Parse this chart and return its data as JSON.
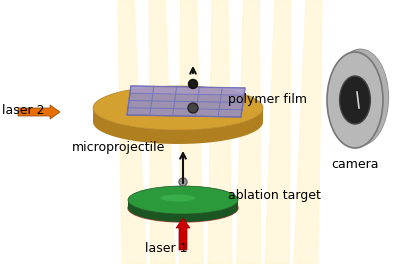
{
  "bg_color": "#ffffff",
  "laser2_arrow_color": "#e87000",
  "laser1_arrow_color": "#cc0000",
  "disk_top_color": "#d4a030",
  "disk_edge_color": "#b08020",
  "disk_side_color": "#c09020",
  "film_color": "#9090cc",
  "film_color2": "#b0a0cc",
  "film_edge_color": "#6060aa",
  "grid_color": "#7070bb",
  "green_disk_top": "#2a9a3a",
  "green_disk_mid": "#1a7a2a",
  "green_disk_hl": "#50cc60",
  "red_disk_color": "#cc6666",
  "camera_outer": "#b0b0b0",
  "camera_mid": "#888888",
  "camera_inner": "#222222",
  "camera_ring": "#999999",
  "ball_dark": "#1a1a1a",
  "ball_gray": "#999999",
  "ray_color": "#fff5d0",
  "arrow_color": "#111111",
  "labels": {
    "laser2": "laser 2",
    "laser1": "laser 1",
    "polymer": "polymer film",
    "microprojectile": "microprojectile",
    "ablation": "ablation target",
    "camera": "camera"
  },
  "label_colors": {
    "laser2": "#000000",
    "laser1": "#000000",
    "polymer": "#000000",
    "microprojectile": "#000000",
    "ablation": "#000000",
    "camera": "#000000"
  }
}
